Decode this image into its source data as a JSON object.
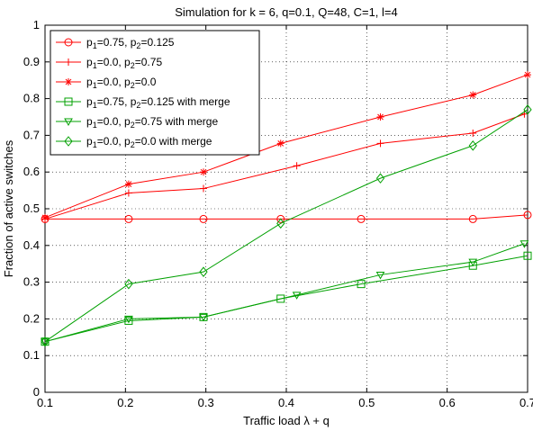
{
  "chart_data": {
    "type": "line",
    "title": "Simulation for k = 6, q=0.1, Q=48, C=1, l=4",
    "xlabel": "Traffic load  λ + q",
    "ylabel": "Fraction of active switches",
    "xlim": [
      0.1,
      0.7
    ],
    "ylim": [
      0,
      1
    ],
    "xticks": [
      0.1,
      0.2,
      0.3,
      0.4,
      0.5,
      0.6,
      0.7
    ],
    "xtick_labels": [
      "0.1",
      "0.2",
      "0.3",
      "0.4",
      "0.5",
      "0.6",
      "0.7"
    ],
    "yticks": [
      0,
      0.1,
      0.2,
      0.3,
      0.4,
      0.5,
      0.6,
      0.7,
      0.8,
      0.9,
      1
    ],
    "ytick_labels": [
      "0",
      "0.1",
      "0.2",
      "0.3",
      "0.4",
      "0.5",
      "0.6",
      "0.7",
      "0.8",
      "0.9",
      "1"
    ],
    "grid": true,
    "legend_position": "top-left",
    "series": [
      {
        "name": "p1=0.75, p2=0.125",
        "legend": {
          "a": "p",
          "a_sub": "1",
          "b": "=0.75, p",
          "b_sub": "2",
          "c": "=0.125"
        },
        "color": "#ff0000",
        "marker": "circle",
        "x": [
          0.1,
          0.204,
          0.297,
          0.393,
          0.493,
          0.632,
          0.7
        ],
        "y": [
          0.472,
          0.472,
          0.472,
          0.472,
          0.472,
          0.472,
          0.483
        ]
      },
      {
        "name": "p1=0.0, p2=0.75",
        "legend": {
          "a": "p",
          "a_sub": "1",
          "b": "=0.0, p",
          "b_sub": "2",
          "c": "=0.75"
        },
        "color": "#ff0000",
        "marker": "plus",
        "x": [
          0.1,
          0.204,
          0.297,
          0.413,
          0.517,
          0.632,
          0.696
        ],
        "y": [
          0.472,
          0.543,
          0.555,
          0.617,
          0.678,
          0.706,
          0.758
        ]
      },
      {
        "name": "p1=0.0, p2=0.0",
        "legend": {
          "a": "p",
          "a_sub": "1",
          "b": "=0.0, p",
          "b_sub": "2",
          "c": "=0.0"
        },
        "color": "#ff0000",
        "marker": "star",
        "x": [
          0.1,
          0.204,
          0.297,
          0.393,
          0.517,
          0.632,
          0.7
        ],
        "y": [
          0.476,
          0.567,
          0.6,
          0.678,
          0.75,
          0.81,
          0.865
        ]
      },
      {
        "name": "p1=0.75, p2=0.125 with merge",
        "legend": {
          "a": "p",
          "a_sub": "1",
          "b": "=0.75, p",
          "b_sub": "2",
          "c": "=0.125 with merge"
        },
        "color": "#00a000",
        "marker": "square",
        "x": [
          0.1,
          0.204,
          0.297,
          0.393,
          0.493,
          0.632,
          0.7
        ],
        "y": [
          0.138,
          0.195,
          0.205,
          0.255,
          0.295,
          0.345,
          0.372
        ]
      },
      {
        "name": "p1=0.0, p2=0.75 with merge",
        "legend": {
          "a": "p",
          "a_sub": "1",
          "b": "=0.0, p",
          "b_sub": "2",
          "c": "=0.75 with merge"
        },
        "color": "#00a000",
        "marker": "triangle-down",
        "x": [
          0.1,
          0.204,
          0.297,
          0.413,
          0.517,
          0.632,
          0.696
        ],
        "y": [
          0.138,
          0.2,
          0.205,
          0.265,
          0.32,
          0.355,
          0.405
        ]
      },
      {
        "name": "p1=0.0, p2=0.0 with merge",
        "legend": {
          "a": "p",
          "a_sub": "1",
          "b": "=0.0, p",
          "b_sub": "2",
          "c": "=0.0 with merge"
        },
        "color": "#00a000",
        "marker": "diamond",
        "x": [
          0.1,
          0.204,
          0.297,
          0.393,
          0.517,
          0.632,
          0.7
        ],
        "y": [
          0.138,
          0.295,
          0.328,
          0.46,
          0.583,
          0.672,
          0.77
        ]
      }
    ]
  }
}
